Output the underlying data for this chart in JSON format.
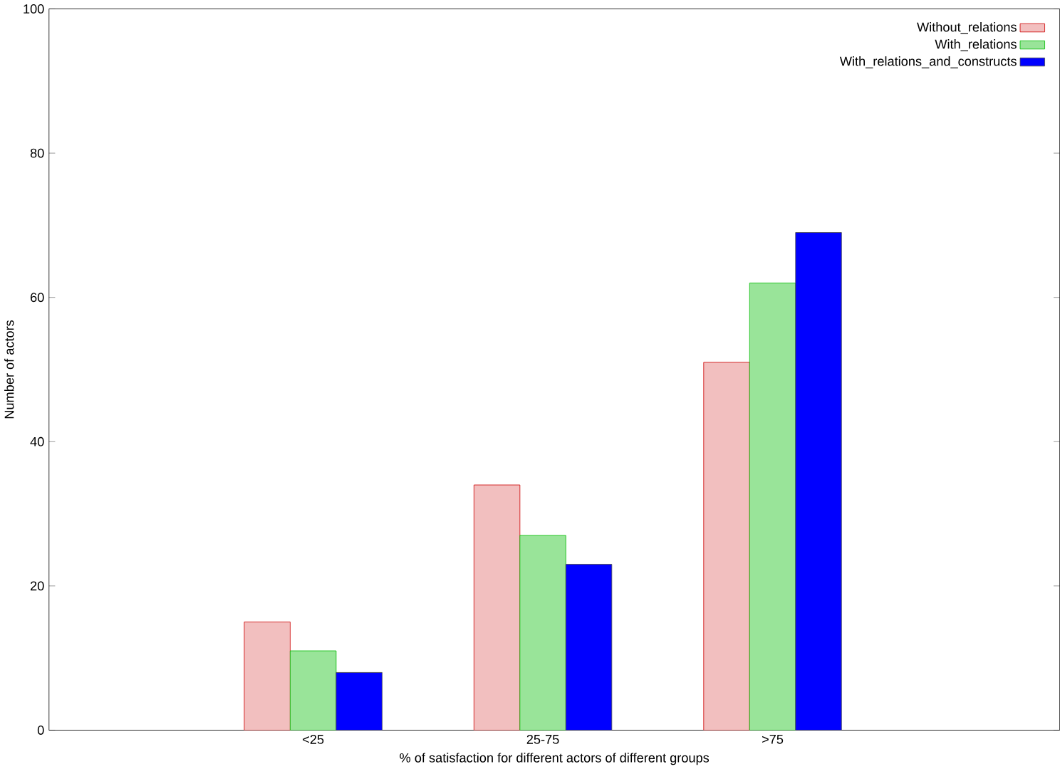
{
  "chart_data": {
    "type": "bar",
    "xlabel": "% of satisfaction for different actors of different groups",
    "ylabel": "Number of actors",
    "categories": [
      "<25",
      "25-75",
      ">75"
    ],
    "series": [
      {
        "name": "Without_relations",
        "color": "#cc0000",
        "values": [
          15,
          34,
          51
        ]
      },
      {
        "name": "With_relations",
        "color": "#00bb00",
        "values": [
          11,
          27,
          62
        ]
      },
      {
        "name": "With_relations_and_constructs",
        "color": "#0000ff",
        "values": [
          8,
          23,
          69
        ]
      }
    ],
    "ylim": [
      0,
      100
    ],
    "yticks": [
      0,
      20,
      40,
      60,
      80,
      100
    ],
    "legend": "top right",
    "grid": false
  }
}
